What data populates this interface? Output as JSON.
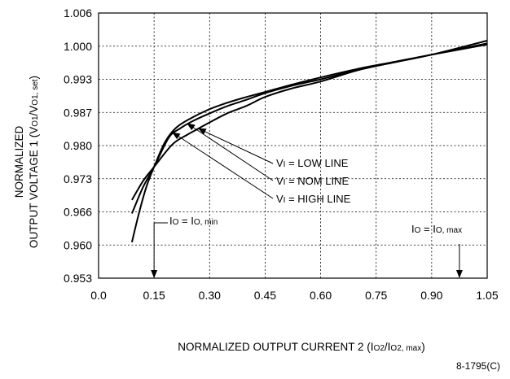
{
  "chart_data": {
    "type": "line",
    "ylabel_line1": "NORMALIZED",
    "ylabel_line2": "OUTPUT VOLTAGE 1 (V",
    "ylabel_sub1": "O1",
    "ylabel_mid": "/V",
    "ylabel_sub2": "O1, set",
    "ylabel_end": ")",
    "xlabel_main": "NORMALIZED OUTPUT CURRENT 2 (I",
    "xlabel_sub1": "O2",
    "xlabel_mid": "/I",
    "xlabel_sub2": "O2, max",
    "xlabel_end": ")",
    "x_ticks": [
      "0.0",
      "0.15",
      "0.30",
      "0.45",
      "0.60",
      "0.75",
      "0.90",
      "1.05"
    ],
    "x_tick_values": [
      0.0,
      0.15,
      0.3,
      0.45,
      0.6,
      0.75,
      0.9,
      1.05
    ],
    "y_ticks": [
      "1.006",
      "1.000",
      "0.993",
      "0.987",
      "0.980",
      "0.973",
      "0.966",
      "0.960",
      "0.953"
    ],
    "xlim": [
      0.0,
      1.05
    ],
    "y_scale": "categorical-ticks",
    "grid": true,
    "series": [
      {
        "name": "V I = LOW LINE",
        "prefix": "V",
        "sub": "I",
        "suffix": " = LOW LINE",
        "x": [
          0.09,
          0.12,
          0.15,
          0.2,
          0.24,
          0.27,
          0.3,
          0.35,
          0.4,
          0.45,
          0.52,
          0.6,
          0.7,
          0.8,
          0.9,
          1.05
        ],
        "y": [
          0.9685,
          0.9725,
          0.9755,
          0.9803,
          0.9823,
          0.9836,
          0.9849,
          0.9869,
          0.9882,
          0.9898,
          0.9913,
          0.9926,
          0.9949,
          0.9966,
          0.9982,
          1.001
        ]
      },
      {
        "name": "V I = NOM LINE",
        "prefix": "V",
        "sub": "I",
        "suffix": " = NOM  LINE",
        "x": [
          0.09,
          0.12,
          0.15,
          0.19,
          0.22,
          0.25,
          0.3,
          0.35,
          0.4,
          0.45,
          0.52,
          0.6,
          0.7,
          0.8,
          0.9,
          1.05
        ],
        "y": [
          0.9657,
          0.9712,
          0.9755,
          0.9817,
          0.9836,
          0.985,
          0.9868,
          0.9882,
          0.9893,
          0.9905,
          0.9918,
          0.993,
          0.995,
          0.9966,
          0.9982,
          1.0005
        ]
      },
      {
        "name": "V I = HIGH LINE",
        "prefix": "V",
        "sub": "I",
        "suffix": " = HIGH LINE",
        "x": [
          0.09,
          0.11,
          0.13,
          0.15,
          0.18,
          0.21,
          0.25,
          0.3,
          0.35,
          0.4,
          0.45,
          0.52,
          0.6,
          0.7,
          0.8,
          0.9,
          1.05
        ],
        "y": [
          0.9605,
          0.966,
          0.9715,
          0.9755,
          0.9808,
          0.9838,
          0.9858,
          0.9876,
          0.9888,
          0.9898,
          0.9907,
          0.992,
          0.9934,
          0.9952,
          0.9967,
          0.9982,
          1.0003
        ]
      }
    ],
    "annotations": {
      "io_min": {
        "prefix": "I",
        "sub": "O",
        "mid": " = I",
        "sub2": "O, min",
        "x_value": 0.15
      },
      "io_max": {
        "prefix": "I",
        "sub": "O",
        "mid": " = I",
        "sub2": "O, max",
        "x_value": 0.975
      }
    }
  },
  "figure_id": "8-1795(C)"
}
